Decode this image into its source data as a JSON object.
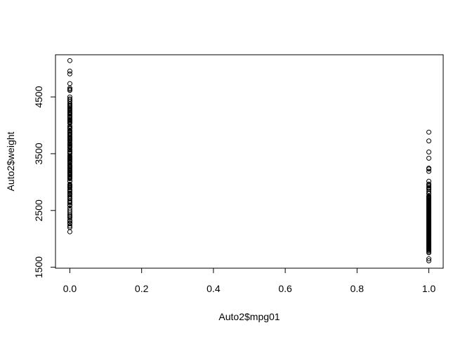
{
  "chart_data": {
    "type": "scatter",
    "title": "",
    "xlabel": "Auto2$mpg01",
    "ylabel": "Auto2$weight",
    "xlim": [
      -0.04,
      1.04
    ],
    "ylim": [
      1483,
      5243
    ],
    "x_ticks": [
      0.0,
      0.2,
      0.4,
      0.6,
      0.8,
      1.0
    ],
    "x_tick_labels": [
      "0.0",
      "0.2",
      "0.4",
      "0.6",
      "0.8",
      "1.0"
    ],
    "y_ticks": [
      1500,
      2500,
      3500,
      4500
    ],
    "y_tick_labels": [
      "1500",
      "2500",
      "3500",
      "4500"
    ],
    "grid": false,
    "legend": "none",
    "marker": "open-circle",
    "colors": {
      "points": "#000000",
      "axes": "#000000",
      "background": "#ffffff"
    },
    "series": [
      {
        "x_value": 0.0,
        "weights": [
          5140,
          4955,
          4906,
          4735,
          4654,
          4633,
          4615,
          4499,
          4464,
          4457,
          4425,
          4422,
          4382,
          4379,
          4354,
          4341,
          4335,
          4312,
          4294,
          4278,
          4274,
          4257,
          4237,
          4220,
          4215,
          4209,
          4190,
          4165,
          4154,
          4141,
          4140,
          4129,
          4100,
          4098,
          4096,
          4082,
          4080,
          4060,
          4055,
          4054,
          4042,
          4036,
          3988,
          3962,
          3955,
          3940,
          3907,
          3900,
          3892,
          3870,
          3850,
          3840,
          3821,
          3794,
          3781,
          3777,
          3761,
          3745,
          3730,
          3725,
          3693,
          3672,
          3664,
          3645,
          3632,
          3620,
          3609,
          3574,
          3570,
          3563,
          3535,
          3530,
          3525,
          3520,
          3504,
          3502,
          3465,
          3449,
          3445,
          3439,
          3436,
          3433,
          3430,
          3425,
          3415,
          3410,
          3399,
          3381,
          3360,
          3353,
          3329,
          3302,
          3288,
          3282,
          3278,
          3270,
          3250,
          3233,
          3211,
          3205,
          3193,
          3171,
          3169,
          3160,
          3158,
          3155,
          3151,
          3150,
          3139,
          3121,
          3102,
          3086,
          3085,
          3070,
          3063,
          3060,
          3021,
          3012,
          2962,
          2945,
          2933,
          2930,
          2914,
          2900,
          2868,
          2857,
          2833,
          2807,
          2795,
          2790,
          2774,
          2747,
          2720,
          2702,
          2670,
          2648,
          2634,
          2600,
          2595,
          2587,
          2542,
          2506,
          2472,
          2434,
          2408,
          2395,
          2372,
          2330,
          2310,
          2279,
          2264,
          2226,
          2200,
          2124
        ]
      },
      {
        "x_value": 1.0,
        "weights": [
          3880,
          3725,
          3530,
          3420,
          3245,
          3230,
          3190,
          3015,
          2965,
          2950,
          2930,
          2905,
          2890,
          2870,
          2835,
          2800,
          2795,
          2755,
          2745,
          2735,
          2725,
          2720,
          2711,
          2700,
          2690,
          2678,
          2670,
          2665,
          2660,
          2650,
          2640,
          2635,
          2625,
          2615,
          2605,
          2600,
          2595,
          2585,
          2575,
          2565,
          2560,
          2556,
          2545,
          2540,
          2530,
          2525,
          2515,
          2505,
          2500,
          2490,
          2480,
          2475,
          2465,
          2455,
          2450,
          2440,
          2430,
          2420,
          2410,
          2405,
          2395,
          2385,
          2380,
          2370,
          2360,
          2350,
          2340,
          2335,
          2325,
          2315,
          2310,
          2300,
          2290,
          2280,
          2275,
          2265,
          2255,
          2245,
          2240,
          2230,
          2220,
          2215,
          2205,
          2195,
          2190,
          2180,
          2170,
          2160,
          2150,
          2145,
          2135,
          2125,
          2120,
          2110,
          2100,
          2090,
          2085,
          2075,
          2065,
          2055,
          2050,
          2045,
          2035,
          2025,
          2020,
          2010,
          2000,
          1990,
          1985,
          1975,
          1965,
          1955,
          1950,
          1940,
          1930,
          1925,
          1915,
          1905,
          1900,
          1890,
          1880,
          1875,
          1865,
          1855,
          1845,
          1835,
          1825,
          1815,
          1800,
          1795,
          1773,
          1755,
          1649,
          1613
        ]
      }
    ]
  }
}
